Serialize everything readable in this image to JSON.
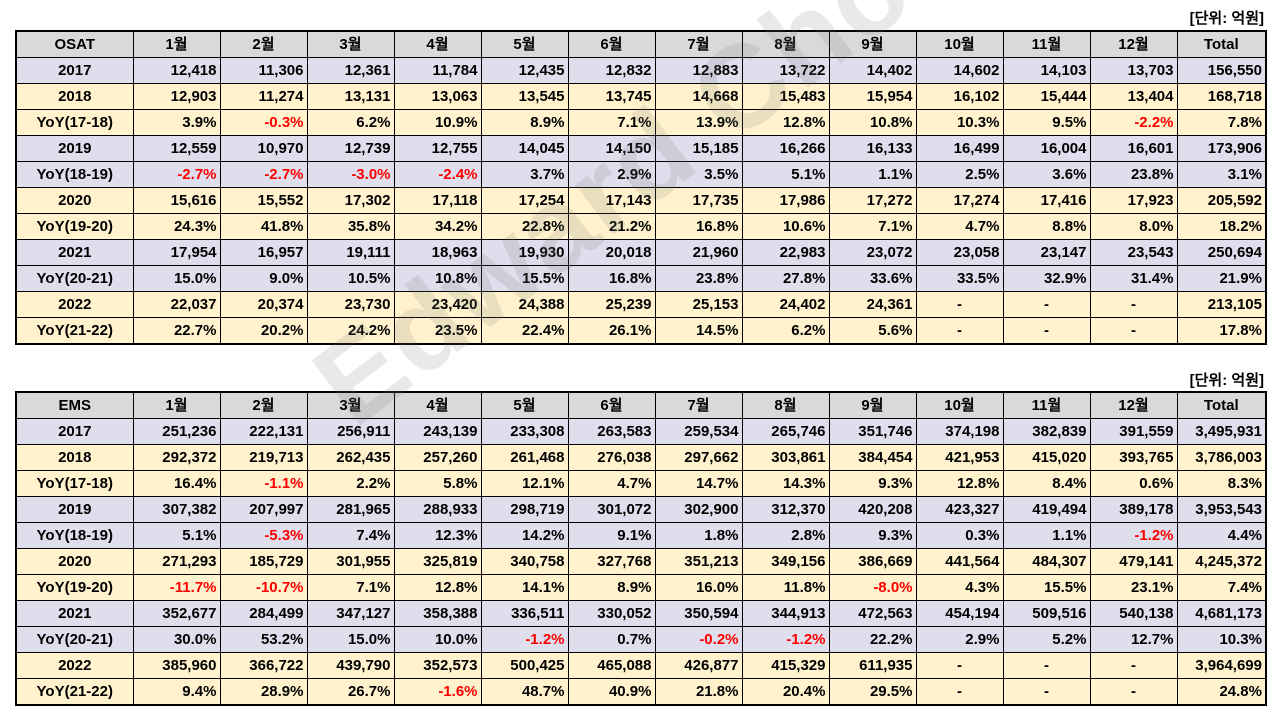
{
  "osat": {
    "unit": "[단위: 억원]",
    "headers": [
      "OSAT",
      "1월",
      "2월",
      "3월",
      "4월",
      "5월",
      "6월",
      "7월",
      "8월",
      "9월",
      "10월",
      "11월",
      "12월",
      "Total"
    ],
    "rows": [
      {
        "style": "gray",
        "cells": [
          "2017",
          "12,418",
          "11,306",
          "12,361",
          "11,784",
          "12,435",
          "12,832",
          "12,883",
          "13,722",
          "14,402",
          "14,602",
          "14,103",
          "13,703",
          "156,550"
        ]
      },
      {
        "style": "yel",
        "cells": [
          "2018",
          "12,903",
          "11,274",
          "13,131",
          "13,063",
          "13,545",
          "13,745",
          "14,668",
          "15,483",
          "15,954",
          "16,102",
          "15,444",
          "13,404",
          "168,718"
        ]
      },
      {
        "style": "yel",
        "cells": [
          "YoY(17-18)",
          "3.9%",
          "-0.3%",
          "6.2%",
          "10.9%",
          "8.9%",
          "7.1%",
          "13.9%",
          "12.8%",
          "10.8%",
          "10.3%",
          "9.5%",
          "-2.2%",
          "7.8%"
        ]
      },
      {
        "style": "gray",
        "cells": [
          "2019",
          "12,559",
          "10,970",
          "12,739",
          "12,755",
          "14,045",
          "14,150",
          "15,185",
          "16,266",
          "16,133",
          "16,499",
          "16,004",
          "16,601",
          "173,906"
        ]
      },
      {
        "style": "gray",
        "cells": [
          "YoY(18-19)",
          "-2.7%",
          "-2.7%",
          "-3.0%",
          "-2.4%",
          "3.7%",
          "2.9%",
          "3.5%",
          "5.1%",
          "1.1%",
          "2.5%",
          "3.6%",
          "23.8%",
          "3.1%"
        ]
      },
      {
        "style": "yel",
        "cells": [
          "2020",
          "15,616",
          "15,552",
          "17,302",
          "17,118",
          "17,254",
          "17,143",
          "17,735",
          "17,986",
          "17,272",
          "17,274",
          "17,416",
          "17,923",
          "205,592"
        ]
      },
      {
        "style": "yel",
        "cells": [
          "YoY(19-20)",
          "24.3%",
          "41.8%",
          "35.8%",
          "34.2%",
          "22.8%",
          "21.2%",
          "16.8%",
          "10.6%",
          "7.1%",
          "4.7%",
          "8.8%",
          "8.0%",
          "18.2%"
        ]
      },
      {
        "style": "gray",
        "cells": [
          "2021",
          "17,954",
          "16,957",
          "19,111",
          "18,963",
          "19,930",
          "20,018",
          "21,960",
          "22,983",
          "23,072",
          "23,058",
          "23,147",
          "23,543",
          "250,694"
        ]
      },
      {
        "style": "gray",
        "cells": [
          "YoY(20-21)",
          "15.0%",
          "9.0%",
          "10.5%",
          "10.8%",
          "15.5%",
          "16.8%",
          "23.8%",
          "27.8%",
          "33.6%",
          "33.5%",
          "32.9%",
          "31.4%",
          "21.9%"
        ]
      },
      {
        "style": "yel",
        "cells": [
          "2022",
          "22,037",
          "20,374",
          "23,730",
          "23,420",
          "24,388",
          "25,239",
          "25,153",
          "24,402",
          "24,361",
          "-",
          "-",
          "-",
          "213,105"
        ]
      },
      {
        "style": "yel",
        "cells": [
          "YoY(21-22)",
          "22.7%",
          "20.2%",
          "24.2%",
          "23.5%",
          "22.4%",
          "26.1%",
          "14.5%",
          "6.2%",
          "5.6%",
          "-",
          "-",
          "-",
          "17.8%"
        ]
      }
    ]
  },
  "ems": {
    "unit": "[단위: 억원]",
    "headers": [
      "EMS",
      "1월",
      "2월",
      "3월",
      "4월",
      "5월",
      "6월",
      "7월",
      "8월",
      "9월",
      "10월",
      "11월",
      "12월",
      "Total"
    ],
    "rows": [
      {
        "style": "gray",
        "cells": [
          "2017",
          "251,236",
          "222,131",
          "256,911",
          "243,139",
          "233,308",
          "263,583",
          "259,534",
          "265,746",
          "351,746",
          "374,198",
          "382,839",
          "391,559",
          "3,495,931"
        ]
      },
      {
        "style": "yel",
        "cells": [
          "2018",
          "292,372",
          "219,713",
          "262,435",
          "257,260",
          "261,468",
          "276,038",
          "297,662",
          "303,861",
          "384,454",
          "421,953",
          "415,020",
          "393,765",
          "3,786,003"
        ]
      },
      {
        "style": "yel",
        "cells": [
          "YoY(17-18)",
          "16.4%",
          "-1.1%",
          "2.2%",
          "5.8%",
          "12.1%",
          "4.7%",
          "14.7%",
          "14.3%",
          "9.3%",
          "12.8%",
          "8.4%",
          "0.6%",
          "8.3%"
        ]
      },
      {
        "style": "gray",
        "cells": [
          "2019",
          "307,382",
          "207,997",
          "281,965",
          "288,933",
          "298,719",
          "301,072",
          "302,900",
          "312,370",
          "420,208",
          "423,327",
          "419,494",
          "389,178",
          "3,953,543"
        ]
      },
      {
        "style": "gray",
        "cells": [
          "YoY(18-19)",
          "5.1%",
          "-5.3%",
          "7.4%",
          "12.3%",
          "14.2%",
          "9.1%",
          "1.8%",
          "2.8%",
          "9.3%",
          "0.3%",
          "1.1%",
          "-1.2%",
          "4.4%"
        ]
      },
      {
        "style": "yel",
        "cells": [
          "2020",
          "271,293",
          "185,729",
          "301,955",
          "325,819",
          "340,758",
          "327,768",
          "351,213",
          "349,156",
          "386,669",
          "441,564",
          "484,307",
          "479,141",
          "4,245,372"
        ]
      },
      {
        "style": "yel",
        "cells": [
          "YoY(19-20)",
          "-11.7%",
          "-10.7%",
          "7.1%",
          "12.8%",
          "14.1%",
          "8.9%",
          "16.0%",
          "11.8%",
          "-8.0%",
          "4.3%",
          "15.5%",
          "23.1%",
          "7.4%"
        ]
      },
      {
        "style": "gray",
        "cells": [
          "2021",
          "352,677",
          "284,499",
          "347,127",
          "358,388",
          "336,511",
          "330,052",
          "350,594",
          "344,913",
          "472,563",
          "454,194",
          "509,516",
          "540,138",
          "4,681,173"
        ]
      },
      {
        "style": "gray",
        "cells": [
          "YoY(20-21)",
          "30.0%",
          "53.2%",
          "15.0%",
          "10.0%",
          "-1.2%",
          "0.7%",
          "-0.2%",
          "-1.2%",
          "22.2%",
          "2.9%",
          "5.2%",
          "12.7%",
          "10.3%"
        ]
      },
      {
        "style": "yel",
        "cells": [
          "2022",
          "385,960",
          "366,722",
          "439,790",
          "352,573",
          "500,425",
          "465,088",
          "426,877",
          "415,329",
          "611,935",
          "-",
          "-",
          "-",
          "3,964,699"
        ]
      },
      {
        "style": "yel",
        "cells": [
          "YoY(21-22)",
          "9.4%",
          "28.9%",
          "26.7%",
          "-1.6%",
          "48.7%",
          "40.9%",
          "21.8%",
          "20.4%",
          "29.5%",
          "-",
          "-",
          "-",
          "24.8%"
        ]
      }
    ]
  },
  "watermark": "Edward Choi",
  "colors": {
    "negative": "#ff0000",
    "header_bg": "#d9d9d9",
    "gray_row": "#dedeec",
    "yellow_row": "#fff2cc"
  }
}
